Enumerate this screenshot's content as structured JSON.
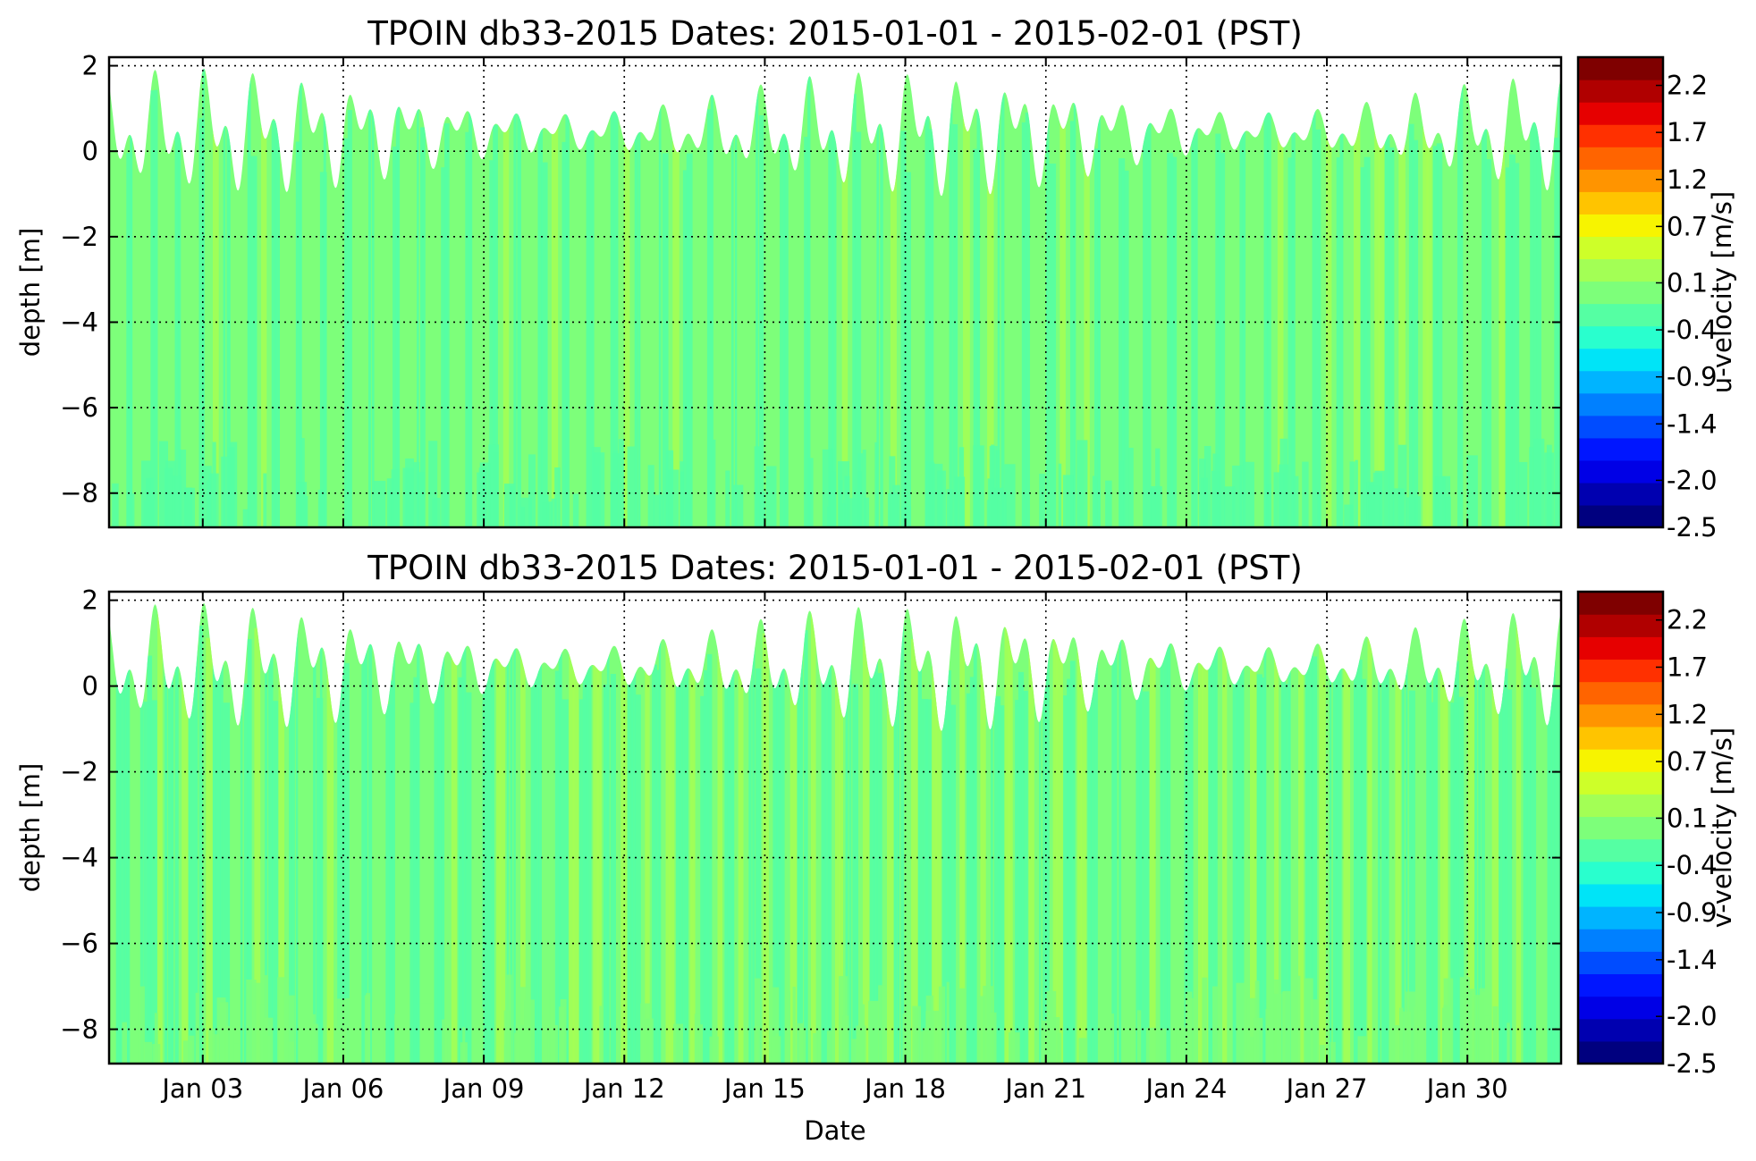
{
  "chart_data": [
    {
      "type": "heatmap",
      "title": "TPOIN db33-2015 Dates: 2015-01-01 - 2015-02-01 (PST)",
      "xlabel": "",
      "ylabel": "depth [m]",
      "colorbar_label": "u-velocity [m/s]",
      "xlim": [
        "2015-01-01",
        "2015-02-01"
      ],
      "ylim": [
        -8.8,
        2.2
      ],
      "x_ticks": [],
      "y_ticks": [
        2,
        0,
        -2,
        -4,
        -6,
        -8
      ],
      "y_tick_labels": [
        "2",
        "0",
        "−2",
        "−4",
        "−6",
        "−8"
      ],
      "grid": true,
      "colorbar_ticks": [
        "2.2",
        "1.7",
        "1.2",
        "0.7",
        "0.1",
        "-0.4",
        "-0.9",
        "-1.4",
        "-2.0",
        "-2.5"
      ],
      "colorbar_range": [
        -2.5,
        2.5
      ],
      "dominant_value_range": [
        -0.4,
        0.3
      ]
    },
    {
      "type": "heatmap",
      "title": "TPOIN db33-2015 Dates: 2015-01-01 - 2015-02-01 (PST)",
      "xlabel": "Date",
      "ylabel": "depth [m]",
      "colorbar_label": "v-velocity [m/s]",
      "xlim": [
        "2015-01-01",
        "2015-02-01"
      ],
      "ylim": [
        -8.8,
        2.2
      ],
      "x_ticks": [
        "Jan 03",
        "Jan 06",
        "Jan 09",
        "Jan 12",
        "Jan 15",
        "Jan 18",
        "Jan 21",
        "Jan 24",
        "Jan 27",
        "Jan 30"
      ],
      "y_ticks": [
        2,
        0,
        -2,
        -4,
        -6,
        -8
      ],
      "y_tick_labels": [
        "2",
        "0",
        "−2",
        "−4",
        "−6",
        "−8"
      ],
      "grid": true,
      "colorbar_ticks": [
        "2.2",
        "1.7",
        "1.2",
        "0.7",
        "0.1",
        "-0.4",
        "-0.9",
        "-1.4",
        "-2.0",
        "-2.5"
      ],
      "colorbar_range": [
        -2.5,
        2.5
      ],
      "dominant_value_range": [
        -0.5,
        0.3
      ]
    }
  ],
  "colormap": [
    "#00007f",
    "#0000b0",
    "#0000e6",
    "#0016ff",
    "#004cff",
    "#0080ff",
    "#00b4ff",
    "#00e4f7",
    "#29ffce",
    "#55ffa3",
    "#7dff7a",
    "#a3ff55",
    "#ceff29",
    "#f7f400",
    "#ffc400",
    "#ff9400",
    "#ff6400",
    "#ff3000",
    "#e60000",
    "#b00000",
    "#7f0000"
  ],
  "surface_water_level": {
    "unit": "m",
    "typical_high": [
      1.2,
      2.1
    ],
    "typical_low": [
      -1.2,
      -0.3
    ]
  }
}
